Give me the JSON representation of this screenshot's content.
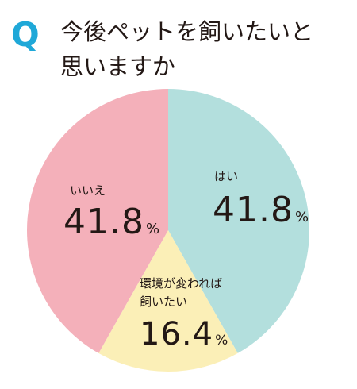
{
  "q_mark": "Q",
  "title_line1": "今後ペットを飼いたいと",
  "title_line2": "思いますか",
  "colors": {
    "q_accent": "#1fa8d8",
    "text": "#231815"
  },
  "chart_data": {
    "type": "pie",
    "start_angle_deg": 0,
    "direction": "clockwise",
    "slices": [
      {
        "label": "はい",
        "label_line2": "",
        "value": 41.8,
        "value_text": "41.8",
        "unit": "%",
        "color": "#b3dfdd"
      },
      {
        "label": "環境が変われば",
        "label_line2": "飼いたい",
        "value": 16.4,
        "value_text": "16.4",
        "unit": "%",
        "color": "#fbefb7"
      },
      {
        "label": "いいえ",
        "label_line2": "",
        "value": 41.8,
        "value_text": "41.8",
        "unit": "%",
        "color": "#f4b0ba"
      }
    ]
  }
}
